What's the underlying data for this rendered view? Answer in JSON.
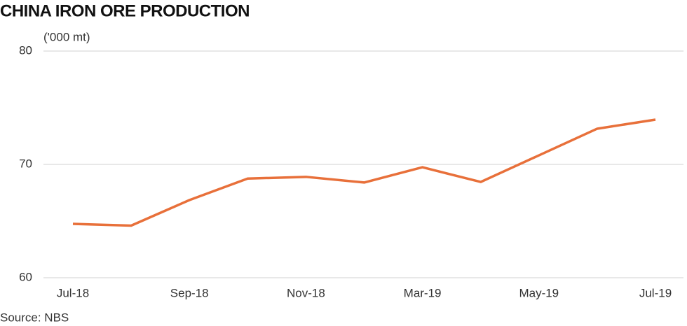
{
  "chart_data": {
    "type": "line",
    "title": "CHINA IRON ORE PRODUCTION",
    "y_label": "('000 mt)",
    "source": "Source: NBS",
    "categories": [
      "Jul-18",
      null,
      "Sep-18",
      null,
      "Nov-18",
      null,
      "Mar-19",
      null,
      "May-19",
      null,
      "Jul-19"
    ],
    "series": [
      {
        "name": "Iron ore production",
        "color": "#e8703a",
        "values": [
          64.75,
          64.6,
          66.85,
          68.75,
          68.9,
          68.4,
          69.75,
          68.45,
          70.8,
          73.15,
          73.95
        ]
      }
    ],
    "ylim": [
      60,
      80
    ],
    "yticks": [
      60,
      70,
      80
    ],
    "grid": true
  }
}
